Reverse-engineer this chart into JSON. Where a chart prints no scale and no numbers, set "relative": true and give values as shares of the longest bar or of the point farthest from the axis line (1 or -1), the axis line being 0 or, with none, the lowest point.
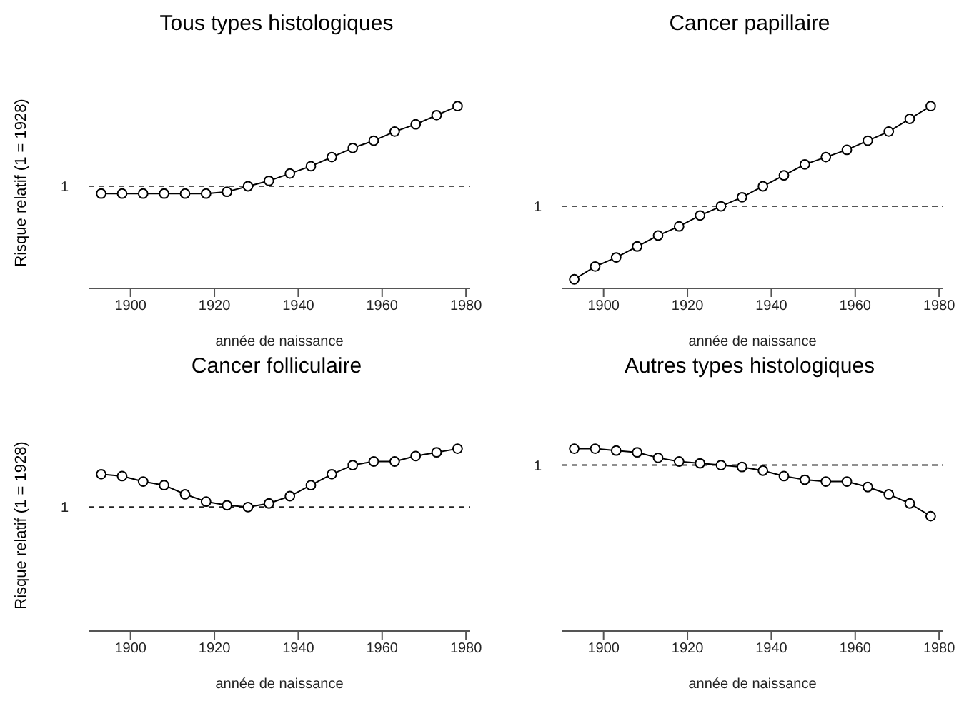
{
  "chart_data": [
    {
      "type": "line",
      "title": "Tous types histologiques",
      "xlabel": "année de naissance",
      "ylabel": "Risque relatif (1 = 1928)",
      "relative": true,
      "marker": "circle",
      "line_style": "solid",
      "grid": false,
      "legend": false,
      "x": [
        1893,
        1898,
        1903,
        1908,
        1913,
        1918,
        1923,
        1928,
        1933,
        1938,
        1943,
        1948,
        1953,
        1958,
        1963,
        1968,
        1973,
        1978
      ],
      "xlim": [
        1890,
        1981
      ],
      "xticks": [
        1900,
        1920,
        1940,
        1960,
        1980
      ],
      "series": [
        {
          "color": "#000000",
          "values": [
            0.52,
            0.52,
            0.52,
            0.52,
            0.52,
            0.52,
            0.53,
            0.56,
            0.59,
            0.63,
            0.67,
            0.72,
            0.77,
            0.81,
            0.86,
            0.9,
            0.95,
            1
          ]
        }
      ],
      "ref_lines": [
        {
          "axis": "y",
          "value": 0.56,
          "color": "#555555",
          "line_style": "dashed"
        }
      ],
      "annotations": [
        "1"
      ]
    },
    {
      "type": "line",
      "title": "Cancer papillaire",
      "xlabel": "année de naissance",
      "relative": true,
      "marker": "circle",
      "line_style": "solid",
      "grid": false,
      "legend": false,
      "x": [
        1893,
        1898,
        1903,
        1908,
        1913,
        1918,
        1923,
        1928,
        1933,
        1938,
        1943,
        1948,
        1953,
        1958,
        1963,
        1968,
        1973,
        1978
      ],
      "xlim": [
        1890,
        1981
      ],
      "xticks": [
        1900,
        1920,
        1940,
        1960,
        1980
      ],
      "series": [
        {
          "color": "#000000",
          "values": [
            0.05,
            0.12,
            0.17,
            0.23,
            0.29,
            0.34,
            0.4,
            0.45,
            0.5,
            0.56,
            0.62,
            0.68,
            0.72,
            0.76,
            0.81,
            0.86,
            0.93,
            1
          ]
        }
      ],
      "ref_lines": [
        {
          "axis": "y",
          "value": 0.45,
          "color": "#555555",
          "line_style": "dashed"
        }
      ],
      "annotations": [
        "1"
      ]
    },
    {
      "type": "line",
      "title": "Cancer folliculaire",
      "xlabel": "année de naissance",
      "ylabel": "Risque relatif (1 = 1928)",
      "relative": true,
      "marker": "circle",
      "line_style": "solid",
      "grid": false,
      "legend": false,
      "x": [
        1893,
        1898,
        1903,
        1908,
        1913,
        1918,
        1923,
        1928,
        1933,
        1938,
        1943,
        1948,
        1953,
        1958,
        1963,
        1968,
        1973,
        1978
      ],
      "xlim": [
        1890,
        1981
      ],
      "xticks": [
        1900,
        1920,
        1940,
        1960,
        1980
      ],
      "series": [
        {
          "color": "#000000",
          "values": [
            0.86,
            0.85,
            0.82,
            0.8,
            0.75,
            0.71,
            0.69,
            0.68,
            0.7,
            0.74,
            0.8,
            0.86,
            0.91,
            0.93,
            0.93,
            0.96,
            0.98,
            1
          ]
        }
      ],
      "ref_lines": [
        {
          "axis": "y",
          "value": 0.68,
          "color": "#222222",
          "line_style": "dashed"
        }
      ],
      "annotations": [
        "1"
      ]
    },
    {
      "type": "line",
      "title": "Autres types histologiques",
      "xlabel": "année de naissance",
      "relative": true,
      "marker": "circle",
      "line_style": "solid",
      "grid": false,
      "legend": false,
      "x": [
        1893,
        1898,
        1903,
        1908,
        1913,
        1918,
        1923,
        1928,
        1933,
        1938,
        1943,
        1948,
        1953,
        1958,
        1963,
        1968,
        1973,
        1978
      ],
      "xlim": [
        1890,
        1981
      ],
      "xticks": [
        1900,
        1920,
        1940,
        1960,
        1980
      ],
      "series": [
        {
          "color": "#000000",
          "values": [
            1,
            1,
            0.99,
            0.98,
            0.95,
            0.93,
            0.92,
            0.91,
            0.9,
            0.88,
            0.85,
            0.83,
            0.82,
            0.82,
            0.79,
            0.75,
            0.7,
            0.63
          ]
        }
      ],
      "ref_lines": [
        {
          "axis": "y",
          "value": 0.91,
          "color": "#222222",
          "line_style": "dashed"
        }
      ],
      "annotations": [
        "1"
      ]
    }
  ]
}
